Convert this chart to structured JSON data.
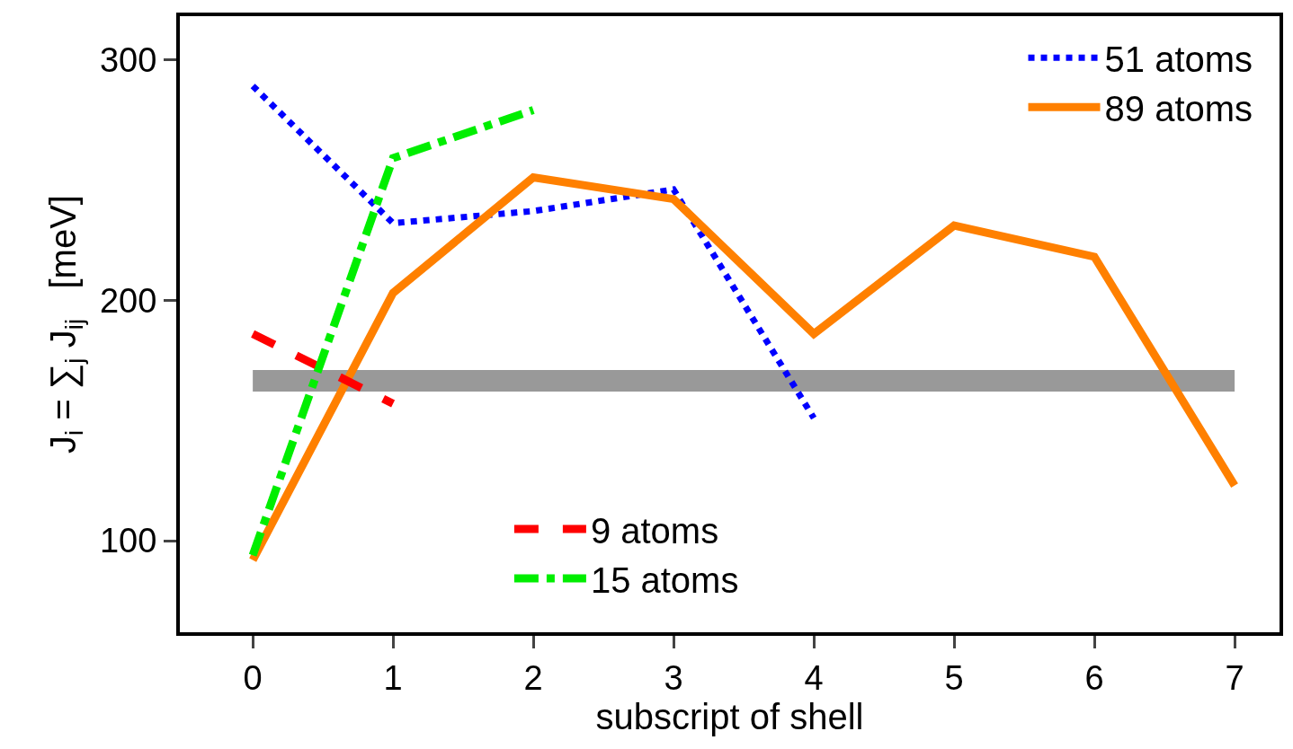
{
  "chart_data": {
    "type": "line",
    "xlabel": "subscript of shell",
    "ylabel": "J$_{i}$ = ∑$_{j}$ J$_{ij}$   [meV]",
    "x": [
      0,
      1,
      2,
      3,
      4,
      5,
      6,
      7
    ],
    "xlim": [
      -0.52,
      7.32
    ],
    "xticks": [
      0,
      1,
      2,
      3,
      4,
      5,
      6,
      7
    ],
    "ylim": [
      62,
      318
    ],
    "yticks": [
      100,
      200,
      300
    ],
    "grid": false,
    "marker": "none",
    "legend": "top right",
    "series": [
      {
        "name": "51 atoms",
        "color": "#0000ff",
        "line_style": "dotted",
        "values": [
          289,
          232,
          237,
          246,
          151,
          null,
          null,
          null
        ]
      },
      {
        "name": "89 atoms",
        "color": "#ff8000",
        "line_style": "solid",
        "values": [
          92,
          203,
          251,
          242,
          186,
          231,
          218,
          123
        ]
      },
      {
        "name": "9 atoms",
        "color": "#ff0000",
        "line_style": "dashed",
        "values": [
          186,
          157,
          null,
          null,
          null,
          null,
          null,
          null
        ]
      },
      {
        "name": "15 atoms",
        "color": "#00ee00",
        "line_style": "dashdot",
        "values": [
          94,
          259,
          279,
          null,
          null,
          null,
          null,
          null
        ]
      }
    ],
    "bands": [
      {
        "axis": "y",
        "from": 162,
        "to": 171,
        "color": "#999999"
      }
    ]
  }
}
